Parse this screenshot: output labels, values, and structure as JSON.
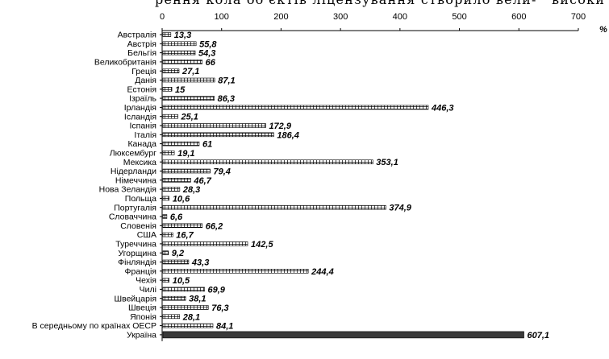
{
  "header": {
    "text_left": "рення кола об'єктів ліцензування створило вели-",
    "text_right": "високи"
  },
  "chart_data": {
    "type": "bar",
    "orientation": "horizontal",
    "title": "",
    "xlabel": "",
    "ylabel": "",
    "x_unit": "%",
    "xlim": [
      0,
      700
    ],
    "x_ticks": [
      "0",
      "100",
      "200",
      "300",
      "400",
      "500",
      "600",
      "700"
    ],
    "value_labels": [
      "13,3",
      "55,8",
      "54,3",
      "66",
      "27,1",
      "87,1",
      "15",
      "86,3",
      "446,3",
      "25,1",
      "172,9",
      "186,4",
      "61",
      "19,1",
      "353,1",
      "79,4",
      "46,7",
      "28,3",
      "10,6",
      "374,9",
      "6,6",
      "66,2",
      "16,7",
      "142,5",
      "9,2",
      "43,3",
      "244,4",
      "10,5",
      "69,9",
      "38,1",
      "76,3",
      "28,1",
      "84,1",
      "607,1"
    ],
    "categories": [
      "Австралія",
      "Австрія",
      "Бельгія",
      "Великобританія",
      "Греція",
      "Данія",
      "Естонія",
      "Ізраїль",
      "Ірландія",
      "Ісландія",
      "Іспанія",
      "Італія",
      "Канада",
      "Люксембург",
      "Мексика",
      "Нідерланди",
      "Німеччина",
      "Нова Зеландія",
      "Польща",
      "Португалія",
      "Словаччина",
      "Словенія",
      "США",
      "Туреччина",
      "Угорщина",
      "Фінляндія",
      "Франція",
      "Чехія",
      "Чилі",
      "Швейцарія",
      "Швеція",
      "Японія",
      "В середньому по країнах ОЕСР",
      "Україна"
    ],
    "values": [
      13.3,
      55.8,
      54.3,
      66,
      27.1,
      87.1,
      15,
      86.3,
      446.3,
      25.1,
      172.9,
      186.4,
      61,
      19.1,
      353.1,
      79.4,
      46.7,
      28.3,
      10.6,
      374.9,
      6.6,
      66.2,
      16.7,
      142.5,
      9.2,
      43.3,
      244.4,
      10.5,
      69.9,
      38.1,
      76.3,
      28.1,
      84.1,
      607.1
    ],
    "highlight_category": "Україна",
    "highlight_color": "#3a3a3a",
    "bar_pattern_color": "#000000",
    "grid": false,
    "legend": "none"
  }
}
